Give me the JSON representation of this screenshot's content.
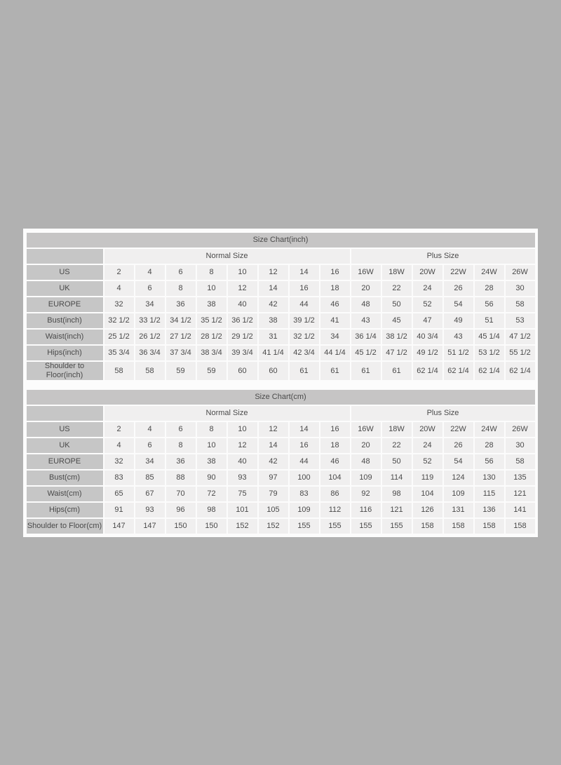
{
  "page": {
    "background_color": "#b1b1b1",
    "panel_color": "#fcfcfc",
    "header_bg_color": "#c6c5c5",
    "label_bg_color": "#c6c6c6",
    "cell_bg_color": "#f0efef",
    "text_color": "#4a4a4a"
  },
  "chart_data": [
    {
      "type": "table",
      "title": "Size Chart(inch)",
      "group_headers": [
        {
          "label": "",
          "span": 1
        },
        {
          "label": "Normal Size",
          "span": 8
        },
        {
          "label": "Plus Size",
          "span": 6
        }
      ],
      "rows": [
        {
          "label": "US",
          "values": [
            "2",
            "4",
            "6",
            "8",
            "10",
            "12",
            "14",
            "16",
            "16W",
            "18W",
            "20W",
            "22W",
            "24W",
            "26W"
          ]
        },
        {
          "label": "UK",
          "values": [
            "4",
            "6",
            "8",
            "10",
            "12",
            "14",
            "16",
            "18",
            "20",
            "22",
            "24",
            "26",
            "28",
            "30"
          ]
        },
        {
          "label": "EUROPE",
          "values": [
            "32",
            "34",
            "36",
            "38",
            "40",
            "42",
            "44",
            "46",
            "48",
            "50",
            "52",
            "54",
            "56",
            "58"
          ]
        },
        {
          "label": "Bust(inch)",
          "values": [
            "32 1/2",
            "33 1/2",
            "34 1/2",
            "35 1/2",
            "36 1/2",
            "38",
            "39 1/2",
            "41",
            "43",
            "45",
            "47",
            "49",
            "51",
            "53"
          ]
        },
        {
          "label": "Waist(inch)",
          "values": [
            "25 1/2",
            "26 1/2",
            "27 1/2",
            "28 1/2",
            "29 1/2",
            "31",
            "32 1/2",
            "34",
            "36 1/4",
            "38 1/2",
            "40 3/4",
            "43",
            "45 1/4",
            "47 1/2"
          ]
        },
        {
          "label": "Hips(inch)",
          "values": [
            "35 3/4",
            "36 3/4",
            "37 3/4",
            "38 3/4",
            "39 3/4",
            "41 1/4",
            "42 3/4",
            "44 1/4",
            "45 1/2",
            "47 1/2",
            "49 1/2",
            "51 1/2",
            "53 1/2",
            "55 1/2"
          ]
        },
        {
          "label": "Shoulder to Floor(inch)",
          "values": [
            "58",
            "58",
            "59",
            "59",
            "60",
            "60",
            "61",
            "61",
            "61",
            "61",
            "62 1/4",
            "62 1/4",
            "62 1/4",
            "62 1/4"
          ]
        }
      ]
    },
    {
      "type": "table",
      "title": "Size Chart(cm)",
      "group_headers": [
        {
          "label": "",
          "span": 1
        },
        {
          "label": "Normal Size",
          "span": 8
        },
        {
          "label": "Plus Size",
          "span": 6
        }
      ],
      "rows": [
        {
          "label": "US",
          "values": [
            "2",
            "4",
            "6",
            "8",
            "10",
            "12",
            "14",
            "16",
            "16W",
            "18W",
            "20W",
            "22W",
            "24W",
            "26W"
          ]
        },
        {
          "label": "UK",
          "values": [
            "4",
            "6",
            "8",
            "10",
            "12",
            "14",
            "16",
            "18",
            "20",
            "22",
            "24",
            "26",
            "28",
            "30"
          ]
        },
        {
          "label": "EUROPE",
          "values": [
            "32",
            "34",
            "36",
            "38",
            "40",
            "42",
            "44",
            "46",
            "48",
            "50",
            "52",
            "54",
            "56",
            "58"
          ]
        },
        {
          "label": "Bust(cm)",
          "values": [
            "83",
            "85",
            "88",
            "90",
            "93",
            "97",
            "100",
            "104",
            "109",
            "114",
            "119",
            "124",
            "130",
            "135"
          ]
        },
        {
          "label": "Waist(cm)",
          "values": [
            "65",
            "67",
            "70",
            "72",
            "75",
            "79",
            "83",
            "86",
            "92",
            "98",
            "104",
            "109",
            "115",
            "121"
          ]
        },
        {
          "label": "Hips(cm)",
          "values": [
            "91",
            "93",
            "96",
            "98",
            "101",
            "105",
            "109",
            "112",
            "116",
            "121",
            "126",
            "131",
            "136",
            "141"
          ]
        },
        {
          "label": "Shoulder to Floor(cm)",
          "values": [
            "147",
            "147",
            "150",
            "150",
            "152",
            "152",
            "155",
            "155",
            "155",
            "155",
            "158",
            "158",
            "158",
            "158"
          ]
        }
      ]
    }
  ]
}
